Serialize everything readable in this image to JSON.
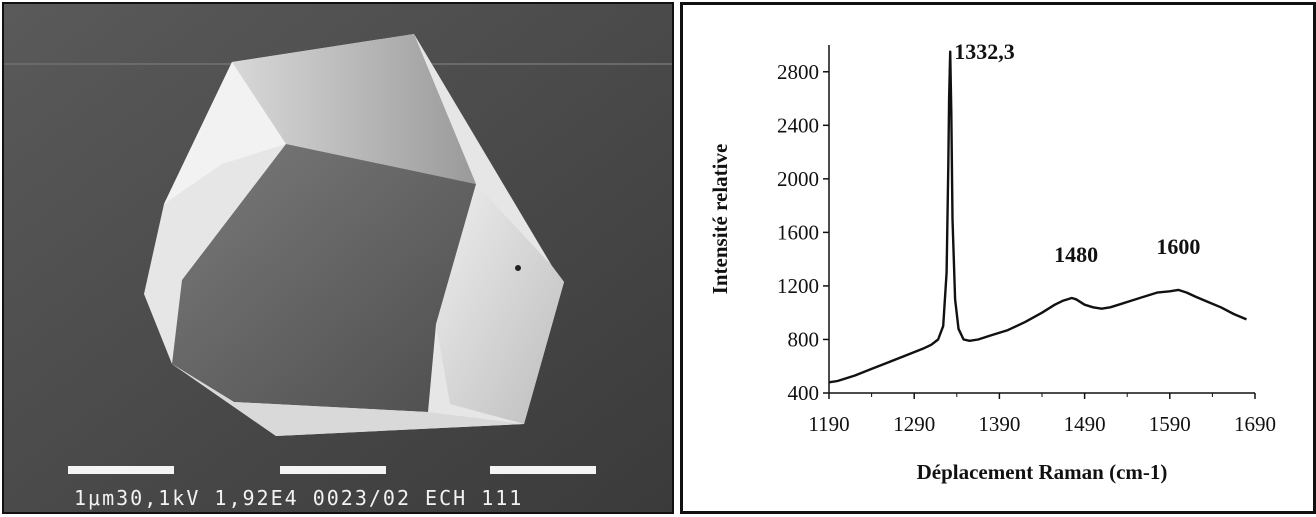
{
  "sem_image": {
    "caption": "1μm30,1kV 1,92E4 0023/02 ECH 111"
  },
  "chart_data": {
    "type": "line",
    "title": "",
    "xlabel": "Déplacement Raman (cm-1)",
    "ylabel": "Intensité relative",
    "xlim": [
      1190,
      1690
    ],
    "ylim": [
      400,
      2800
    ],
    "x_ticks": [
      1190,
      1290,
      1390,
      1490,
      1590,
      1690
    ],
    "y_ticks": [
      400,
      800,
      1200,
      1600,
      2000,
      2400,
      2800
    ],
    "x_tick_labels": [
      "1190",
      "1290",
      "1390",
      "1490",
      "1590",
      "1690"
    ],
    "y_tick_labels": [
      "400",
      "800",
      "1200",
      "1600",
      "2000",
      "2400",
      "2800"
    ],
    "grid": false,
    "series": [
      {
        "x": [
          1190,
          1200,
          1220,
          1240,
          1260,
          1280,
          1300,
          1310,
          1318,
          1324,
          1328,
          1330,
          1331,
          1332.3,
          1333.5,
          1335,
          1338,
          1342,
          1348,
          1355,
          1365,
          1380,
          1400,
          1420,
          1440,
          1455,
          1465,
          1475,
          1480,
          1490,
          1500,
          1510,
          1520,
          1530,
          1545,
          1560,
          1575,
          1590,
          1600,
          1610,
          1620,
          1635,
          1650,
          1665,
          1680
        ],
        "y": [
          480,
          490,
          530,
          580,
          630,
          680,
          730,
          760,
          800,
          900,
          1300,
          2100,
          2600,
          2950,
          2500,
          1700,
          1100,
          880,
          800,
          790,
          800,
          830,
          870,
          930,
          1000,
          1060,
          1090,
          1110,
          1100,
          1060,
          1040,
          1030,
          1040,
          1060,
          1090,
          1120,
          1150,
          1160,
          1170,
          1150,
          1120,
          1080,
          1040,
          990,
          950
        ],
        "color": "#111111"
      }
    ],
    "annotations": [
      {
        "text": "1332,3",
        "x": 1332.3,
        "y": 2950
      },
      {
        "text": "1480",
        "x": 1480,
        "y": 1110
      },
      {
        "text": "1600",
        "x": 1600,
        "y": 1170
      }
    ]
  }
}
